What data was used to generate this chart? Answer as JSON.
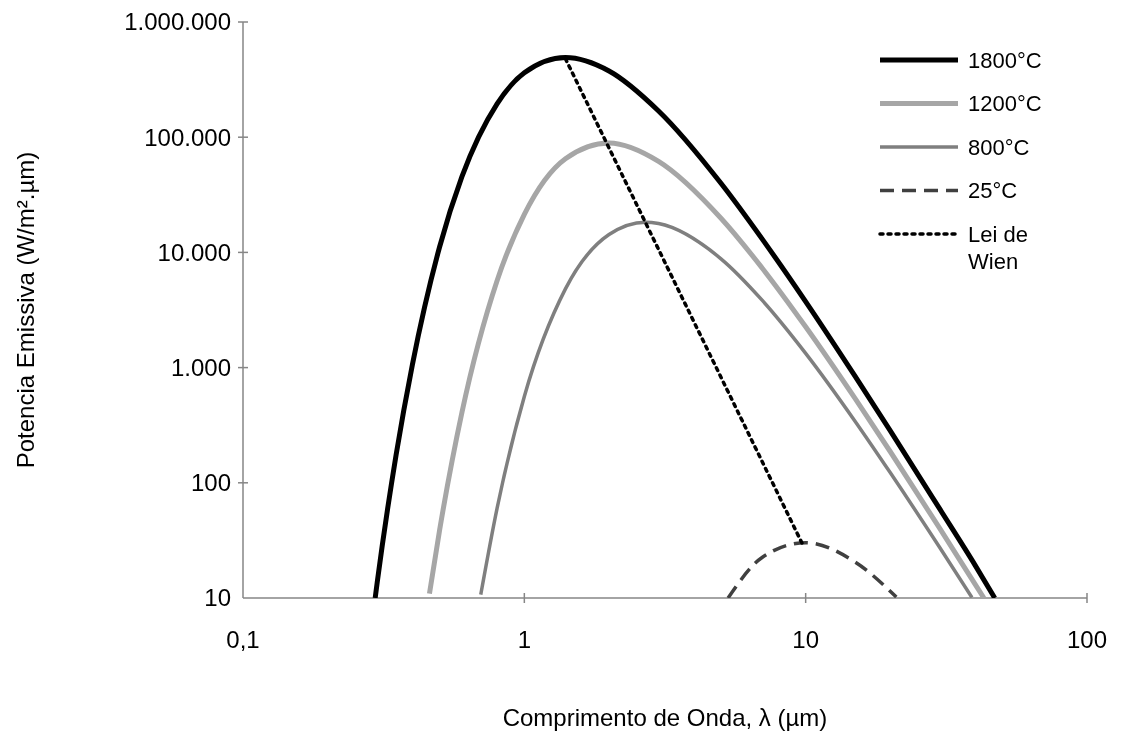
{
  "chart_data": {
    "type": "line",
    "xlabel": "Comprimento de Onda, λ (µm)",
    "ylabel": "Potencia Emissiva (W/m².µm)",
    "log": "xy",
    "xlim": [
      0.1,
      100
    ],
    "ylim": [
      10,
      1000000
    ],
    "xticks": [
      {
        "value": 0.1,
        "label": "0,1"
      },
      1,
      10,
      100
    ],
    "yticks": [
      10,
      100,
      {
        "value": 1000,
        "label": "1.000"
      },
      {
        "value": 10000,
        "label": "10.000"
      },
      {
        "value": 100000,
        "label": "100.000"
      },
      {
        "value": 1000000,
        "label": "1.000.000"
      }
    ],
    "grid": false,
    "legend": "top right",
    "marker": "none",
    "series": [
      {
        "name": "1800°C",
        "color": "#000000",
        "line_style": "solid",
        "x": [
          0.295,
          0.3,
          0.35,
          0.4,
          0.5,
          0.6,
          0.8,
          1,
          1.4,
          2,
          3,
          5,
          7,
          10,
          15,
          20,
          30,
          40,
          47
        ],
        "values": [
          10,
          13.7,
          174,
          1060,
          11200,
          45400,
          195000,
          362000,
          492000,
          376000,
          169000,
          39800,
          13100,
          3740,
          838,
          282,
          59,
          19.3,
          10
        ]
      },
      {
        "name": "1200°C",
        "color": "#a6a6a6",
        "line_style": "solid",
        "x": [
          0.46,
          0.5,
          0.6,
          0.8,
          1,
          1.4,
          2,
          3,
          5,
          7,
          10,
          15,
          20,
          30,
          40,
          43
        ],
        "values": [
          10.9,
          39,
          408,
          5680,
          21400,
          65000,
          89100,
          61700,
          19800,
          7330,
          2260,
          537,
          186,
          40,
          13.2,
          10
        ]
      },
      {
        "name": "800°C",
        "color": "#7f7f7f",
        "line_style": "solid",
        "x": [
          0.7,
          0.8,
          1,
          1.4,
          2,
          2.7,
          3,
          5,
          7,
          10,
          15,
          20,
          30,
          39
        ],
        "values": [
          10.7,
          60,
          562,
          4820,
          14300,
          18300,
          17800,
          8800,
          3850,
          1330,
          341,
          122,
          27.3,
          10.1
        ]
      },
      {
        "name": "25°C",
        "color": "#404040",
        "line_style": "dashed",
        "x": [
          5.3,
          7,
          10,
          15,
          21
        ],
        "values": [
          10,
          22.5,
          30.2,
          20.5,
          10.2
        ]
      },
      {
        "name": "Lei de Wien",
        "color": "#000000",
        "line_style": "dotted",
        "x": [
          1.4,
          9.7
        ],
        "values": [
          480000,
          30
        ]
      }
    ]
  }
}
